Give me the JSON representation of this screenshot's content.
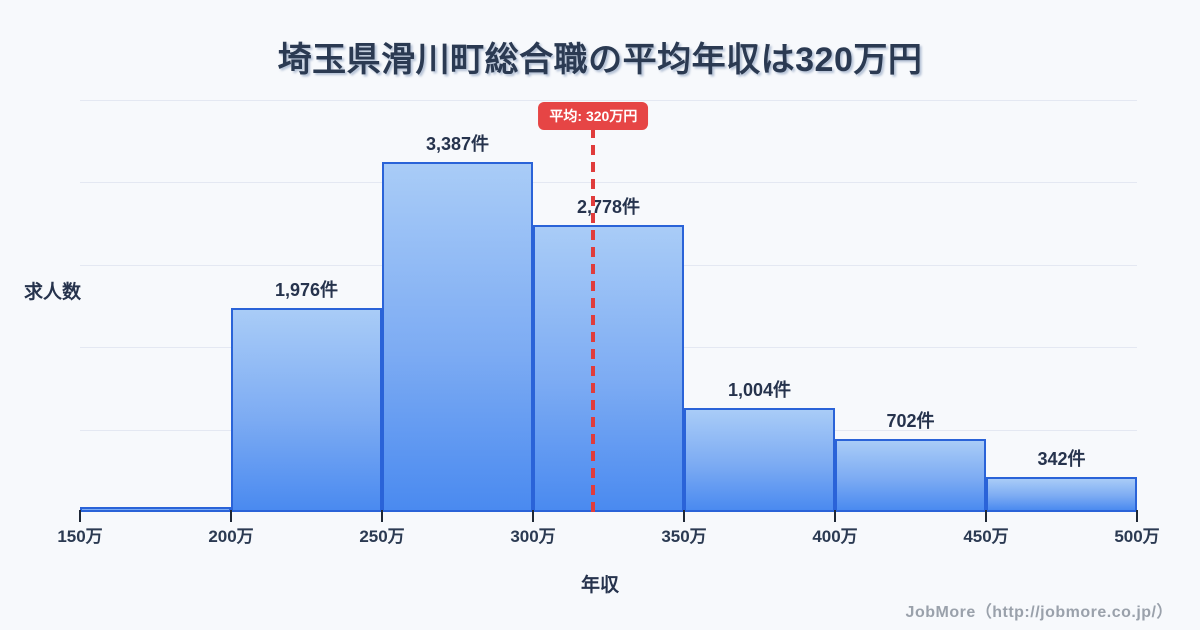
{
  "title": "埼玉県滑川町総合職の平均年収は320万円",
  "footer_credit": "JobMore（http://jobmore.co.jp/）",
  "chart_data": {
    "type": "bar",
    "subtype": "histogram",
    "title": "埼玉県滑川町総合職の平均年収は320万円",
    "xlabel": "年収",
    "ylabel": "求人数",
    "x_axis_range_man_yen": [
      150,
      500
    ],
    "bin_width_man_yen": 50,
    "x_tick_labels": [
      "150万",
      "200万",
      "250万",
      "300万",
      "350万",
      "400万",
      "450万",
      "500万"
    ],
    "categories": [
      "150万-200万",
      "200万-250万",
      "250万-300万",
      "300万-350万",
      "350万-400万",
      "400万-450万",
      "450万-500万"
    ],
    "values": [
      40,
      1976,
      3387,
      2778,
      1004,
      702,
      342
    ],
    "bar_labels": [
      "",
      "1,976件",
      "3,387件",
      "2,778件",
      "1,004件",
      "702件",
      "342件"
    ],
    "average_line": {
      "value_man_yen": 320,
      "badge_label": "平均: 320万円"
    },
    "grid": true,
    "gridline_count": 5,
    "legend": false
  },
  "colors": {
    "background": "#f7f9fc",
    "title_text": "#2b3a52",
    "bar_border": "#2a63d8",
    "bar_gradient_top": "#a9ccf7",
    "bar_gradient_bottom": "#4a8af0",
    "gridline": "#e4e8f2",
    "average_red": "#e64545",
    "footer_text": "#9aa1ab"
  }
}
